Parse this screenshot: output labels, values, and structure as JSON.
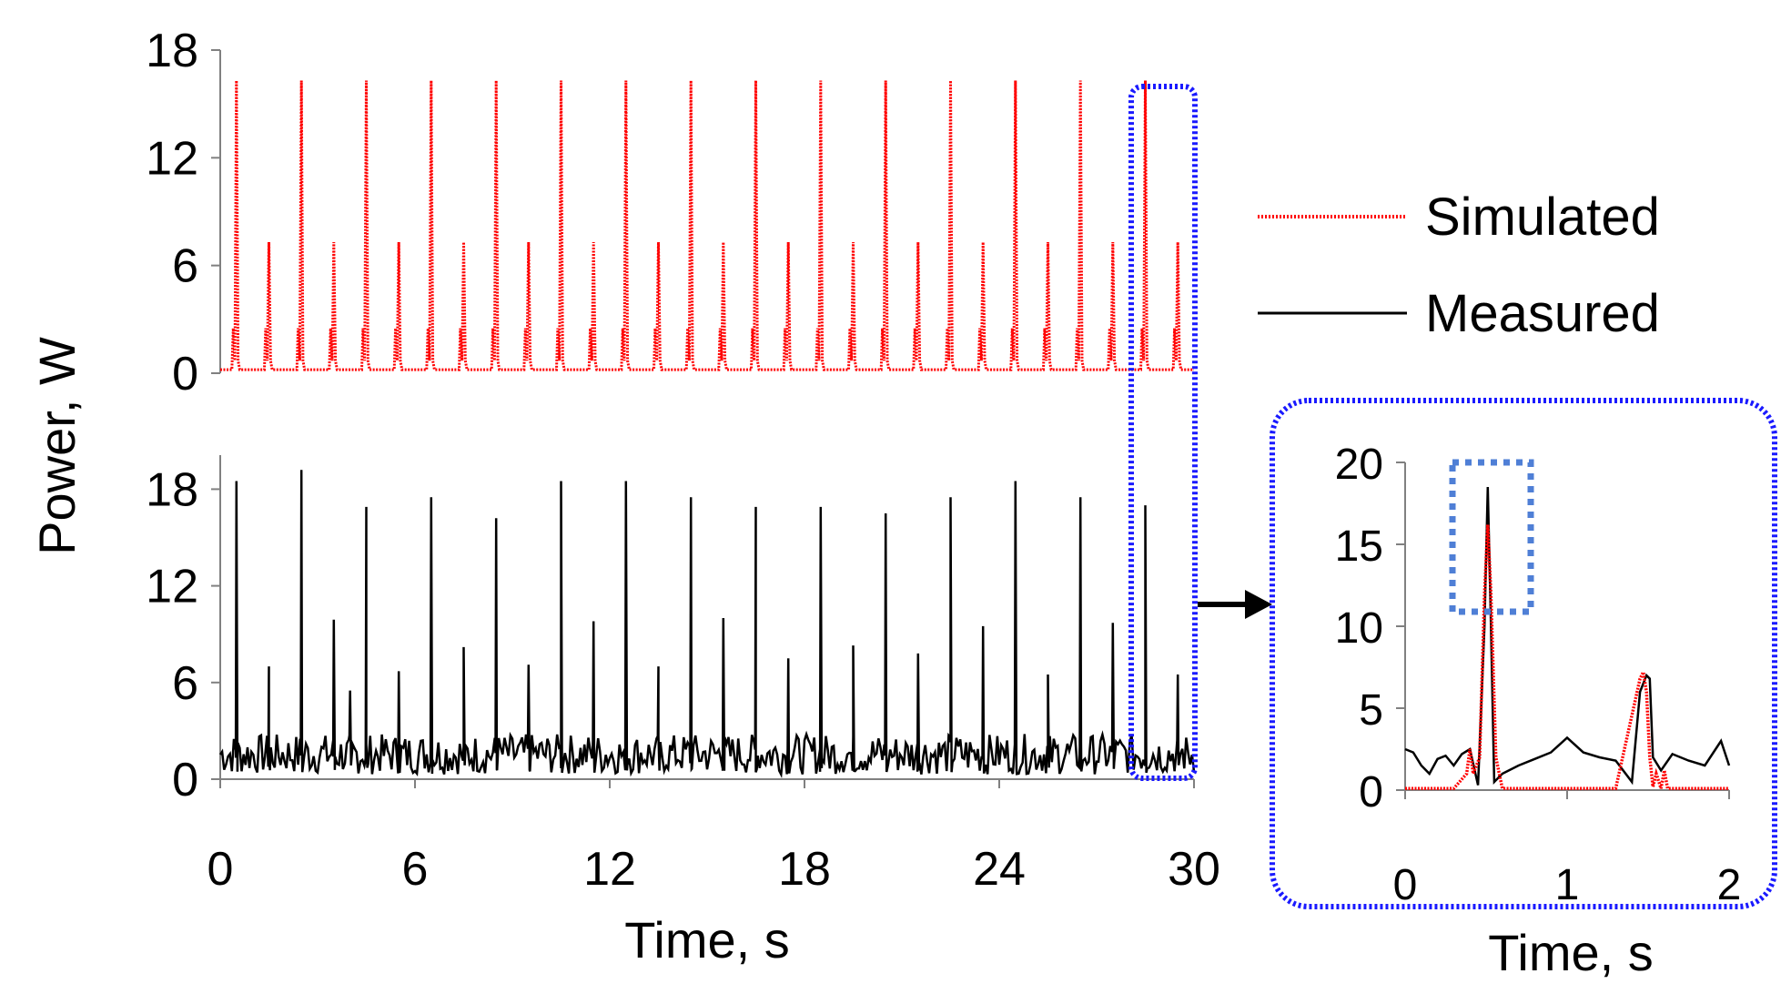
{
  "chart_data": [
    {
      "id": "simulated-main",
      "type": "line",
      "ylabel": "Power, W",
      "xlim": [
        0,
        30
      ],
      "ylim": [
        0,
        18
      ],
      "yticks": [
        "0",
        "6",
        "12",
        "18"
      ],
      "series": [
        {
          "name": "Simulated",
          "color": "#ff0000",
          "style": "dotted",
          "baseline": 0.2,
          "spike_times": [
            0.5,
            1.5,
            2.5,
            3.5,
            4.5,
            5.5,
            6.5,
            7.5,
            8.5,
            9.5,
            10.5,
            11.5,
            12.5,
            13.5,
            14.5,
            15.5,
            16.5,
            17.5,
            18.5,
            19.5,
            20.5,
            21.5,
            22.5,
            23.5,
            24.5,
            25.5,
            26.5,
            27.5,
            28.5,
            29.5
          ],
          "spike_values": [
            16.3,
            7.3,
            16.3,
            7.3,
            16.3,
            7.3,
            16.3,
            7.3,
            16.3,
            7.3,
            16.3,
            7.3,
            16.3,
            7.3,
            16.3,
            7.3,
            16.3,
            7.3,
            16.3,
            7.3,
            16.3,
            7.3,
            16.3,
            7.3,
            16.3,
            7.3,
            16.3,
            7.3,
            16.3,
            7.3
          ],
          "shoulder_value": 2.5
        }
      ]
    },
    {
      "id": "measured-main",
      "type": "line",
      "xlabel": "Time, s",
      "xlim": [
        0,
        30
      ],
      "ylim": [
        0,
        20
      ],
      "xticks": [
        "0",
        "6",
        "12",
        "18",
        "24",
        "30"
      ],
      "yticks": [
        "0",
        "6",
        "12",
        "18"
      ],
      "series": [
        {
          "name": "Measured",
          "color": "#000000",
          "baseline_range": [
            0.3,
            2.8
          ],
          "spike_times": [
            0.5,
            1.5,
            2.5,
            3.5,
            4.0,
            4.5,
            5.5,
            6.5,
            7.5,
            8.5,
            9.5,
            10.5,
            11.5,
            12.5,
            13.5,
            14.5,
            15.5,
            16.5,
            17.5,
            18.5,
            19.5,
            20.5,
            21.5,
            22.5,
            23.5,
            24.5,
            25.5,
            26.5,
            27.5,
            28.5,
            29.5
          ],
          "spike_values": [
            18.5,
            7.0,
            19.2,
            9.9,
            5.5,
            16.9,
            6.7,
            17.5,
            8.2,
            16.2,
            7.1,
            18.5,
            9.8,
            18.5,
            7.0,
            17.5,
            10.0,
            16.9,
            7.5,
            16.9,
            8.3,
            16.5,
            7.8,
            17.5,
            9.5,
            18.5,
            6.5,
            17.5,
            9.7,
            17.0,
            6.5
          ]
        }
      ]
    },
    {
      "id": "inset",
      "type": "line",
      "xlabel": "Time, s",
      "xlim": [
        0,
        2
      ],
      "ylim": [
        0,
        20
      ],
      "xticks": [
        "0",
        "1",
        "2"
      ],
      "yticks": [
        "0",
        "5",
        "10",
        "15",
        "20"
      ],
      "series": [
        {
          "name": "Simulated",
          "color": "#ff0000",
          "style": "dotted",
          "x": [
            0.0,
            0.3,
            0.38,
            0.4,
            0.42,
            0.46,
            0.49,
            0.51,
            0.53,
            0.56,
            0.6,
            1.3,
            1.45,
            1.47,
            1.49,
            1.51,
            1.53,
            1.55,
            1.58,
            1.6,
            1.62,
            2.0
          ],
          "y": [
            0.1,
            0.1,
            1.0,
            2.5,
            1.0,
            2.0,
            12.0,
            16.2,
            12.0,
            2.0,
            0.1,
            0.1,
            6.8,
            7.2,
            6.0,
            2.0,
            0.2,
            1.0,
            0.1,
            1.2,
            0.1,
            0.1
          ]
        },
        {
          "name": "Measured",
          "color": "#000000",
          "x": [
            0.0,
            0.05,
            0.1,
            0.15,
            0.2,
            0.25,
            0.3,
            0.35,
            0.4,
            0.45,
            0.49,
            0.51,
            0.53,
            0.55,
            0.6,
            0.7,
            0.8,
            0.9,
            1.0,
            1.1,
            1.2,
            1.3,
            1.4,
            1.45,
            1.49,
            1.51,
            1.53,
            1.58,
            1.65,
            1.75,
            1.85,
            1.95,
            2.0
          ],
          "y": [
            2.5,
            2.3,
            1.5,
            1.0,
            1.9,
            2.1,
            1.5,
            2.2,
            2.5,
            0.3,
            10.0,
            18.5,
            10.0,
            0.5,
            1.0,
            1.5,
            1.9,
            2.3,
            3.2,
            2.3,
            2.0,
            1.8,
            0.5,
            6.0,
            7.0,
            6.8,
            2.0,
            1.2,
            2.2,
            1.8,
            1.5,
            3.0,
            1.5
          ]
        }
      ]
    }
  ],
  "legend": {
    "position": "right",
    "entries": [
      {
        "label": "Simulated",
        "color": "#ff0000",
        "style": "dotted"
      },
      {
        "label": "Measured",
        "color": "#000000",
        "style": "solid"
      }
    ]
  },
  "highlight_color": "#1a1aff",
  "zoom_box_color": "#4f7fd6",
  "arrow_color": "#000000"
}
